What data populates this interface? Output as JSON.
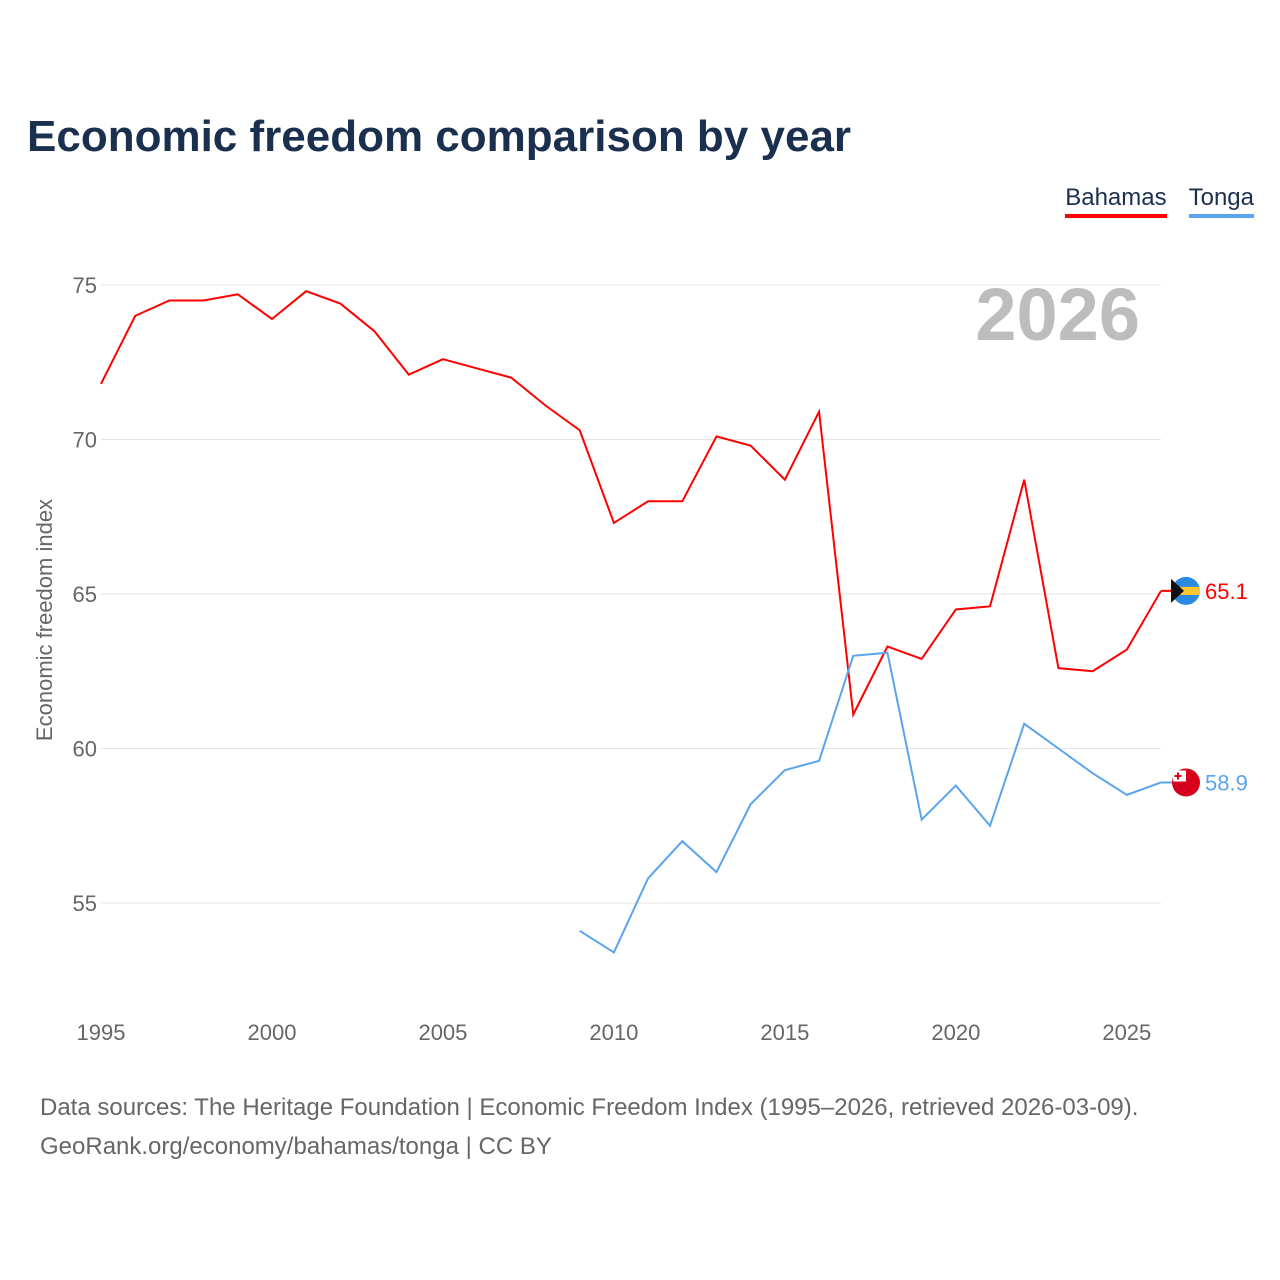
{
  "chart_data": {
    "type": "line",
    "title": "Economic freedom comparison by year",
    "ylabel": "Economic freedom index",
    "xlabel": "",
    "xlim": [
      1995,
      2026
    ],
    "ylim": [
      52,
      76
    ],
    "x_ticks": [
      1995,
      2000,
      2005,
      2010,
      2015,
      2020,
      2025
    ],
    "y_ticks": [
      55,
      60,
      65,
      70,
      75
    ],
    "grid": true,
    "legend_position": "top-right",
    "year_watermark": "2026",
    "series": [
      {
        "name": "Bahamas",
        "color": "#ff0000",
        "end_label": "65.1",
        "x": [
          1995,
          1996,
          1997,
          1998,
          1999,
          2000,
          2001,
          2002,
          2003,
          2004,
          2005,
          2006,
          2007,
          2008,
          2009,
          2010,
          2011,
          2012,
          2013,
          2014,
          2015,
          2016,
          2017,
          2018,
          2019,
          2020,
          2021,
          2022,
          2023,
          2024,
          2025,
          2026
        ],
        "values": [
          71.8,
          74.0,
          74.5,
          74.5,
          74.7,
          73.9,
          74.8,
          74.4,
          73.5,
          72.1,
          72.6,
          72.3,
          72.0,
          71.1,
          70.3,
          67.3,
          68.0,
          68.0,
          70.1,
          69.8,
          68.7,
          70.9,
          61.1,
          63.3,
          62.9,
          64.5,
          64.6,
          68.7,
          62.6,
          62.5,
          63.2,
          65.1
        ]
      },
      {
        "name": "Tonga",
        "color": "#5ba4ec",
        "end_label": "58.9",
        "x": [
          2009,
          2010,
          2011,
          2012,
          2013,
          2014,
          2015,
          2016,
          2017,
          2018,
          2019,
          2020,
          2021,
          2022,
          2023,
          2024,
          2025,
          2026
        ],
        "values": [
          54.1,
          53.4,
          55.8,
          57.0,
          56.0,
          58.2,
          59.3,
          59.6,
          63.0,
          63.1,
          57.7,
          58.8,
          57.5,
          60.8,
          60.0,
          59.2,
          58.5,
          58.9
        ]
      }
    ]
  },
  "footer": {
    "line1": "Data sources: The Heritage Foundation | Economic Freedom Index (1995–2026, retrieved 2026-03-09).",
    "line2": "GeoRank.org/economy/bahamas/tonga | CC BY"
  }
}
